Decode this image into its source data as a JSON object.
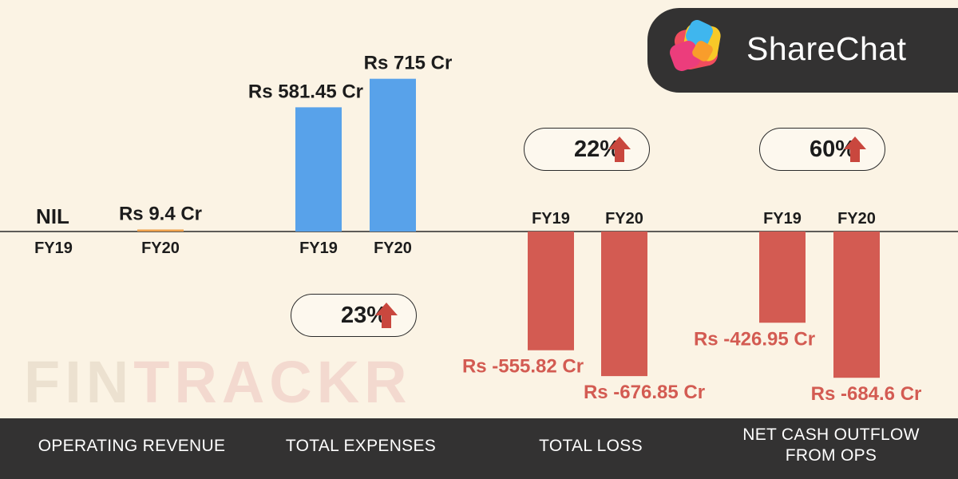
{
  "brand": {
    "name": "ShareChat",
    "watermark_part1": "FIN",
    "watermark_part2": "TRACKR"
  },
  "colors": {
    "background": "#fbf3e4",
    "revenue": "#eea04a",
    "expenses": "#58a2ea",
    "loss": "#d35b52",
    "footer": "#333232",
    "arrow": "#c9473e"
  },
  "icons": [
    "sharechat-logo-icon",
    "up-arrow-icon"
  ],
  "growth": {
    "expenses": "23%",
    "loss": "22%",
    "cash_outflow": "60%"
  },
  "chart_data": {
    "type": "bar",
    "baseline": 0,
    "groups": [
      {
        "name": "OPERATING REVENUE",
        "categories": [
          "FY19",
          "FY20"
        ],
        "values": [
          0,
          9.4
        ],
        "labels": [
          "NIL",
          "Rs 9.4 Cr"
        ]
      },
      {
        "name": "TOTAL EXPENSES",
        "categories": [
          "FY19",
          "FY20"
        ],
        "values": [
          581.45,
          715
        ],
        "labels": [
          "Rs 581.45 Cr",
          "Rs 715 Cr"
        ]
      },
      {
        "name": "TOTAL LOSS",
        "categories": [
          "FY19",
          "FY20"
        ],
        "values": [
          -555.82,
          -676.85
        ],
        "labels": [
          "Rs -555.82 Cr",
          "Rs -676.85 Cr"
        ]
      },
      {
        "name": "NET CASH OUTFLOW FROM OPS",
        "categories": [
          "FY19",
          "FY20"
        ],
        "values": [
          -426.95,
          -684.6
        ],
        "labels": [
          "Rs -426.95 Cr",
          "Rs -684.6 Cr"
        ]
      }
    ]
  },
  "footer": {
    "labels": [
      "OPERATING REVENUE",
      "TOTAL EXPENSES",
      "TOTAL LOSS",
      "NET CASH OUTFLOW\nFROM OPS"
    ]
  }
}
